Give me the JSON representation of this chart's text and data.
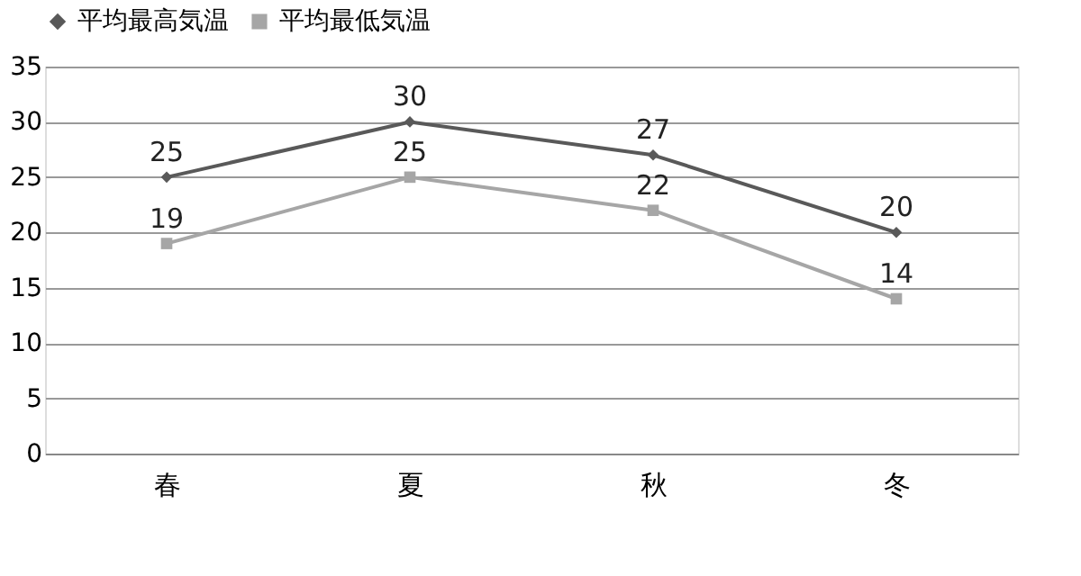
{
  "chart_data": {
    "type": "line",
    "categories": [
      "春",
      "夏",
      "秋",
      "冬"
    ],
    "series": [
      {
        "name": "平均最高気温",
        "color": "#595959",
        "marker": "diamond",
        "values": [
          25,
          30,
          27,
          20
        ]
      },
      {
        "name": "平均最低気温",
        "color": "#a6a6a6",
        "marker": "square",
        "values": [
          19,
          25,
          22,
          14
        ]
      }
    ],
    "ylim": [
      0,
      35
    ],
    "yticks": [
      0,
      5,
      10,
      15,
      20,
      25,
      30,
      35
    ],
    "grid": "y",
    "legend": "top",
    "data_labels": true
  }
}
